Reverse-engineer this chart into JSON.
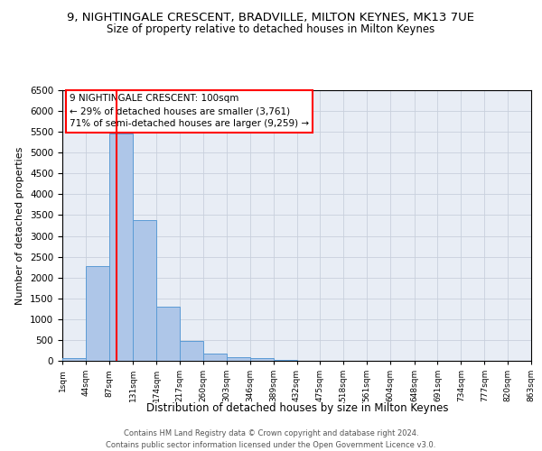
{
  "title1": "9, NIGHTINGALE CRESCENT, BRADVILLE, MILTON KEYNES, MK13 7UE",
  "title2": "Size of property relative to detached houses in Milton Keynes",
  "xlabel": "Distribution of detached houses by size in Milton Keynes",
  "ylabel": "Number of detached properties",
  "footer1": "Contains HM Land Registry data © Crown copyright and database right 2024.",
  "footer2": "Contains public sector information licensed under the Open Government Licence v3.0.",
  "bar_edges": [
    1,
    44,
    87,
    131,
    174,
    217,
    260,
    303,
    346,
    389,
    432,
    475,
    518,
    561,
    604,
    648,
    691,
    734,
    777,
    820,
    863
  ],
  "bar_heights": [
    70,
    2280,
    5450,
    3380,
    1310,
    480,
    165,
    80,
    60,
    30,
    0,
    0,
    0,
    0,
    0,
    0,
    0,
    0,
    0,
    0
  ],
  "bar_color": "#aec6e8",
  "bar_edgecolor": "#5b9bd5",
  "vline_x": 100,
  "vline_color": "red",
  "annotation_line1": "9 NIGHTINGALE CRESCENT: 100sqm",
  "annotation_line2": "← 29% of detached houses are smaller (3,761)",
  "annotation_line3": "71% of semi-detached houses are larger (9,259) →",
  "ylim_max": 6500,
  "yticks": [
    0,
    500,
    1000,
    1500,
    2000,
    2500,
    3000,
    3500,
    4000,
    4500,
    5000,
    5500,
    6000,
    6500
  ],
  "grid_color": "#c8d0dc",
  "bg_color": "#e8edf5",
  "title1_fontsize": 9.5,
  "title2_fontsize": 8.5,
  "ylabel_fontsize": 8,
  "xlabel_fontsize": 8.5,
  "footer_fontsize": 6.0,
  "annot_fontsize": 7.5,
  "tick_fontsize": 6.5,
  "ytick_fontsize": 7.5,
  "tick_labels": [
    "1sqm",
    "44sqm",
    "87sqm",
    "131sqm",
    "174sqm",
    "217sqm",
    "260sqm",
    "303sqm",
    "346sqm",
    "389sqm",
    "432sqm",
    "475sqm",
    "518sqm",
    "561sqm",
    "604sqm",
    "648sqm",
    "691sqm",
    "734sqm",
    "777sqm",
    "820sqm",
    "863sqm"
  ]
}
